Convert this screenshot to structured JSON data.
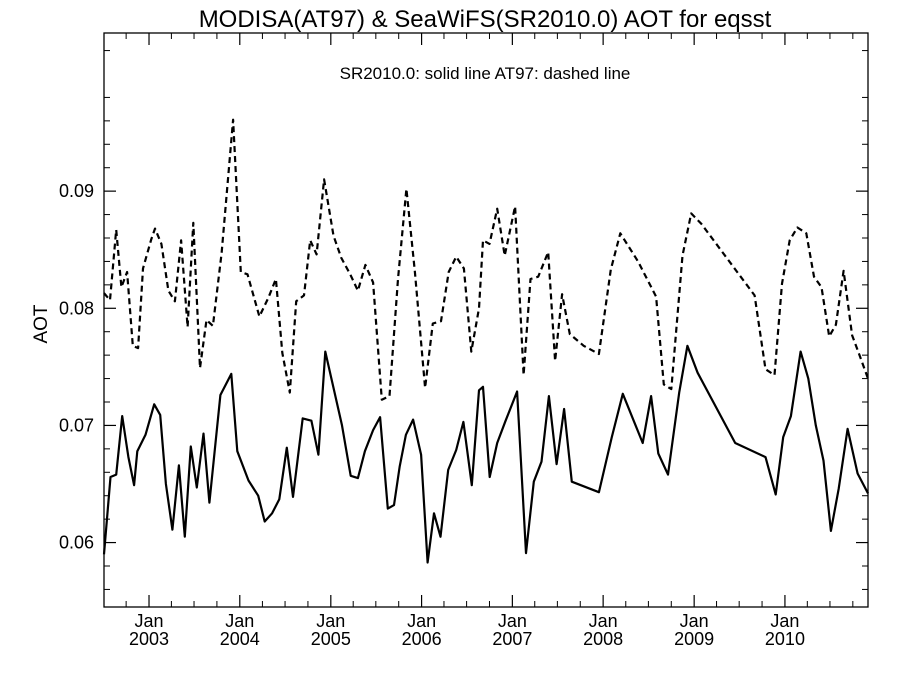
{
  "chart_data": {
    "type": "line",
    "title": "MODISA(AT97) & SeaWiFS(SR2010.0)  AOT for eqsst",
    "annotation": "SR2010.0: solid line   AT97: dashed line",
    "ylabel": "AOT",
    "xlabel": "",
    "ylim": [
      0.0545,
      0.1035
    ],
    "xlim": [
      "2002-07-04",
      "2010-12-01"
    ],
    "y_ticks": [
      {
        "value": 0.06,
        "label": "0.06"
      },
      {
        "value": 0.07,
        "label": "0.07"
      },
      {
        "value": 0.08,
        "label": "0.08"
      },
      {
        "value": 0.09,
        "label": "0.09"
      }
    ],
    "x_ticks": [
      {
        "date": "2003-01-01",
        "month": "Jan",
        "year": "2003"
      },
      {
        "date": "2004-01-01",
        "month": "Jan",
        "year": "2004"
      },
      {
        "date": "2005-01-01",
        "month": "Jan",
        "year": "2005"
      },
      {
        "date": "2006-01-01",
        "month": "Jan",
        "year": "2006"
      },
      {
        "date": "2007-01-01",
        "month": "Jan",
        "year": "2007"
      },
      {
        "date": "2008-01-01",
        "month": "Jan",
        "year": "2008"
      },
      {
        "date": "2009-01-01",
        "month": "Jan",
        "year": "2009"
      },
      {
        "date": "2010-01-01",
        "month": "Jan",
        "year": "2010"
      }
    ],
    "grid": false,
    "series": [
      {
        "name": "SR2010.0",
        "style": "solid",
        "color": "#000000",
        "points": [
          [
            "2002-07-04",
            0.059
          ],
          [
            "2002-07-30",
            0.0656
          ],
          [
            "2002-08-22",
            0.0658
          ],
          [
            "2002-09-15",
            0.0708
          ],
          [
            "2002-10-10",
            0.0673
          ],
          [
            "2002-11-02",
            0.0649
          ],
          [
            "2002-11-15",
            0.0678
          ],
          [
            "2002-12-18",
            0.0692
          ],
          [
            "2003-01-22",
            0.0718
          ],
          [
            "2003-02-15",
            0.0709
          ],
          [
            "2003-03-10",
            0.065
          ],
          [
            "2003-04-05",
            0.0611
          ],
          [
            "2003-05-01",
            0.0666
          ],
          [
            "2003-05-25",
            0.0605
          ],
          [
            "2003-06-18",
            0.0682
          ],
          [
            "2003-07-12",
            0.0647
          ],
          [
            "2003-08-08",
            0.0693
          ],
          [
            "2003-09-01",
            0.0634
          ],
          [
            "2003-10-15",
            0.0726
          ],
          [
            "2003-11-28",
            0.0744
          ],
          [
            "2003-12-22",
            0.0678
          ],
          [
            "2004-02-05",
            0.0653
          ],
          [
            "2004-03-15",
            0.064
          ],
          [
            "2004-04-10",
            0.0618
          ],
          [
            "2004-05-10",
            0.0625
          ],
          [
            "2004-06-08",
            0.0637
          ],
          [
            "2004-07-08",
            0.0681
          ],
          [
            "2004-08-02",
            0.0639
          ],
          [
            "2004-09-10",
            0.0706
          ],
          [
            "2004-10-15",
            0.0704
          ],
          [
            "2004-11-12",
            0.0675
          ],
          [
            "2004-12-10",
            0.0763
          ],
          [
            "2005-02-15",
            0.07
          ],
          [
            "2005-03-22",
            0.0657
          ],
          [
            "2005-04-20",
            0.0655
          ],
          [
            "2005-05-18",
            0.0678
          ],
          [
            "2005-06-20",
            0.0696
          ],
          [
            "2005-07-18",
            0.0707
          ],
          [
            "2005-08-18",
            0.0629
          ],
          [
            "2005-09-12",
            0.0632
          ],
          [
            "2005-10-05",
            0.0665
          ],
          [
            "2005-10-30",
            0.0692
          ],
          [
            "2005-11-28",
            0.0705
          ],
          [
            "2005-12-30",
            0.0675
          ],
          [
            "2006-01-25",
            0.0583
          ],
          [
            "2006-02-20",
            0.0625
          ],
          [
            "2006-03-18",
            0.0605
          ],
          [
            "2006-04-18",
            0.0662
          ],
          [
            "2006-05-20",
            0.0679
          ],
          [
            "2006-06-18",
            0.0703
          ],
          [
            "2006-07-22",
            0.0649
          ],
          [
            "2006-08-20",
            0.073
          ],
          [
            "2006-09-05",
            0.0733
          ],
          [
            "2006-10-02",
            0.0656
          ],
          [
            "2006-11-01",
            0.0685
          ],
          [
            "2006-12-05",
            0.0704
          ],
          [
            "2007-01-20",
            0.0729
          ],
          [
            "2007-02-25",
            0.0591
          ],
          [
            "2007-03-28",
            0.0652
          ],
          [
            "2007-04-28",
            0.0669
          ],
          [
            "2007-05-28",
            0.0725
          ],
          [
            "2007-06-28",
            0.0667
          ],
          [
            "2007-07-28",
            0.0714
          ],
          [
            "2007-08-28",
            0.0652
          ],
          [
            "2007-12-15",
            0.0643
          ],
          [
            "2008-02-05",
            0.069
          ],
          [
            "2008-03-20",
            0.0727
          ],
          [
            "2008-06-08",
            0.0685
          ],
          [
            "2008-07-12",
            0.0725
          ],
          [
            "2008-08-10",
            0.0676
          ],
          [
            "2008-09-18",
            0.0658
          ],
          [
            "2008-11-02",
            0.0728
          ],
          [
            "2008-12-05",
            0.0768
          ],
          [
            "2009-01-15",
            0.0745
          ],
          [
            "2009-06-15",
            0.0685
          ],
          [
            "2009-10-15",
            0.0673
          ],
          [
            "2009-11-25",
            0.0641
          ],
          [
            "2009-12-25",
            0.069
          ],
          [
            "2010-01-25",
            0.0708
          ],
          [
            "2010-03-05",
            0.0763
          ],
          [
            "2010-04-05",
            0.074
          ],
          [
            "2010-05-05",
            0.07
          ],
          [
            "2010-06-05",
            0.067
          ],
          [
            "2010-07-05",
            0.061
          ],
          [
            "2010-08-05",
            0.0646
          ],
          [
            "2010-09-10",
            0.0697
          ],
          [
            "2010-10-20",
            0.0659
          ],
          [
            "2010-12-01",
            0.0642
          ]
        ]
      },
      {
        "name": "AT97",
        "style": "dashed",
        "color": "#000000",
        "points": [
          [
            "2002-07-04",
            0.0813
          ],
          [
            "2002-07-28",
            0.0807
          ],
          [
            "2002-08-22",
            0.0867
          ],
          [
            "2002-09-12",
            0.0818
          ],
          [
            "2002-10-05",
            0.0831
          ],
          [
            "2002-10-28",
            0.0768
          ],
          [
            "2002-11-18",
            0.0766
          ],
          [
            "2002-12-08",
            0.0834
          ],
          [
            "2003-01-10",
            0.0859
          ],
          [
            "2003-01-25",
            0.0868
          ],
          [
            "2003-02-20",
            0.0855
          ],
          [
            "2003-03-20",
            0.0815
          ],
          [
            "2003-04-15",
            0.0806
          ],
          [
            "2003-05-10",
            0.0858
          ],
          [
            "2003-06-05",
            0.0784
          ],
          [
            "2003-06-28",
            0.0873
          ],
          [
            "2003-07-25",
            0.0749
          ],
          [
            "2003-08-20",
            0.079
          ],
          [
            "2003-09-15",
            0.0785
          ],
          [
            "2003-10-20",
            0.0847
          ],
          [
            "2003-12-05",
            0.0961
          ],
          [
            "2004-01-05",
            0.0831
          ],
          [
            "2004-02-01",
            0.0829
          ],
          [
            "2004-03-20",
            0.0793
          ],
          [
            "2004-04-25",
            0.0809
          ],
          [
            "2004-05-25",
            0.0825
          ],
          [
            "2004-06-20",
            0.0762
          ],
          [
            "2004-07-20",
            0.0728
          ],
          [
            "2004-08-15",
            0.0806
          ],
          [
            "2004-09-15",
            0.0811
          ],
          [
            "2004-10-10",
            0.0858
          ],
          [
            "2004-11-05",
            0.0846
          ],
          [
            "2004-12-05",
            0.091
          ],
          [
            "2005-01-12",
            0.0862
          ],
          [
            "2005-02-12",
            0.0843
          ],
          [
            "2005-03-20",
            0.0829
          ],
          [
            "2005-04-20",
            0.0815
          ],
          [
            "2005-05-20",
            0.0837
          ],
          [
            "2005-06-20",
            0.0822
          ],
          [
            "2005-07-25",
            0.0722
          ],
          [
            "2005-08-25",
            0.0725
          ],
          [
            "2005-09-28",
            0.0825
          ],
          [
            "2005-11-01",
            0.0902
          ],
          [
            "2005-12-05",
            0.0831
          ],
          [
            "2006-01-15",
            0.0732
          ],
          [
            "2006-02-15",
            0.0787
          ],
          [
            "2006-03-20",
            0.0789
          ],
          [
            "2006-04-20",
            0.0831
          ],
          [
            "2006-05-20",
            0.0844
          ],
          [
            "2006-06-20",
            0.0834
          ],
          [
            "2006-07-20",
            0.0763
          ],
          [
            "2006-08-20",
            0.08
          ],
          [
            "2006-09-05",
            0.0858
          ],
          [
            "2006-10-01",
            0.0855
          ],
          [
            "2006-11-01",
            0.0885
          ],
          [
            "2006-12-01",
            0.0845
          ],
          [
            "2007-01-12",
            0.0887
          ],
          [
            "2007-02-15",
            0.0743
          ],
          [
            "2007-03-15",
            0.0825
          ],
          [
            "2007-04-15",
            0.0827
          ],
          [
            "2007-05-25",
            0.0848
          ],
          [
            "2007-06-22",
            0.0755
          ],
          [
            "2007-07-20",
            0.0812
          ],
          [
            "2007-08-20",
            0.0778
          ],
          [
            "2007-10-15",
            0.0768
          ],
          [
            "2007-12-15",
            0.0761
          ],
          [
            "2008-02-01",
            0.0833
          ],
          [
            "2008-03-10",
            0.0864
          ],
          [
            "2008-05-20",
            0.084
          ],
          [
            "2008-08-01",
            0.081
          ],
          [
            "2008-09-01",
            0.0735
          ],
          [
            "2008-10-01",
            0.0731
          ],
          [
            "2008-11-15",
            0.0845
          ],
          [
            "2008-12-20",
            0.0881
          ],
          [
            "2009-01-30",
            0.0872
          ],
          [
            "2009-09-01",
            0.0811
          ],
          [
            "2009-10-15",
            0.0748
          ],
          [
            "2009-11-20",
            0.0743
          ],
          [
            "2009-12-20",
            0.0821
          ],
          [
            "2010-01-20",
            0.0858
          ],
          [
            "2010-02-20",
            0.0869
          ],
          [
            "2010-03-28",
            0.0864
          ],
          [
            "2010-04-28",
            0.0827
          ],
          [
            "2010-05-28",
            0.0818
          ],
          [
            "2010-06-28",
            0.0776
          ],
          [
            "2010-07-25",
            0.0786
          ],
          [
            "2010-08-25",
            0.0832
          ],
          [
            "2010-09-28",
            0.0777
          ],
          [
            "2010-10-28",
            0.076
          ],
          [
            "2010-12-01",
            0.074
          ]
        ]
      }
    ]
  }
}
